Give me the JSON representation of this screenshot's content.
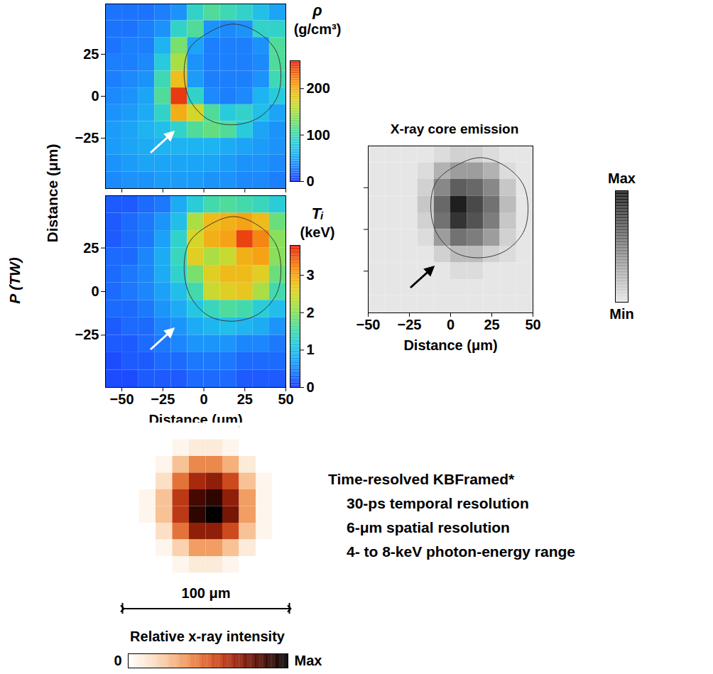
{
  "chart_data": [
    {
      "type": "heatmap",
      "ylabel": "Distance (μm)",
      "xlim": [
        -60,
        50
      ],
      "ylim": [
        -55,
        55
      ],
      "xticks": [
        -50,
        -25,
        0,
        25,
        50
      ],
      "yticks": [
        -25,
        0,
        25
      ],
      "tick_labels": "y",
      "x": [
        -55,
        -45,
        -35,
        -25,
        -15,
        -5,
        5,
        15,
        25,
        35,
        45
      ],
      "y": [
        50,
        40,
        30,
        20,
        10,
        0,
        -10,
        -20,
        -30,
        -40,
        -50
      ],
      "values": [
        [
          25,
          25,
          25,
          30,
          40,
          90,
          110,
          100,
          90,
          70,
          50
        ],
        [
          25,
          25,
          30,
          40,
          90,
          110,
          40,
          35,
          40,
          90,
          90
        ],
        [
          25,
          30,
          30,
          60,
          130,
          50,
          30,
          30,
          30,
          40,
          110
        ],
        [
          30,
          30,
          35,
          80,
          150,
          40,
          30,
          30,
          30,
          35,
          110
        ],
        [
          30,
          35,
          40,
          100,
          190,
          45,
          30,
          30,
          30,
          40,
          100
        ],
        [
          35,
          40,
          50,
          110,
          250,
          90,
          35,
          30,
          35,
          60,
          80
        ],
        [
          40,
          45,
          55,
          90,
          200,
          170,
          110,
          80,
          90,
          70,
          50
        ],
        [
          45,
          50,
          60,
          70,
          90,
          110,
          120,
          110,
          80,
          50,
          40
        ],
        [
          45,
          50,
          55,
          60,
          60,
          60,
          60,
          55,
          50,
          45,
          40
        ],
        [
          40,
          45,
          50,
          50,
          50,
          50,
          50,
          45,
          40,
          40,
          35
        ],
        [
          35,
          40,
          40,
          45,
          45,
          45,
          40,
          40,
          35,
          35,
          30
        ]
      ],
      "contour": {
        "x": [
          47,
          44,
          33,
          18,
          3,
          -9,
          -12,
          -8,
          3,
          18,
          33,
          44
        ],
        "y": [
          12,
          27,
          38,
          43,
          38,
          28,
          12,
          -3,
          -14,
          -17,
          -13,
          -2
        ]
      },
      "colorbar": {
        "label": [
          "ρ",
          "(g/cm³)"
        ],
        "range": [
          0,
          260
        ],
        "ticks": [
          0,
          100,
          200
        ]
      }
    },
    {
      "type": "heatmap",
      "xlabel": "Distance (μm)",
      "xlim": [
        -60,
        50
      ],
      "ylim": [
        -55,
        55
      ],
      "xticks": [
        -50,
        -25,
        0,
        25,
        50
      ],
      "yticks": [
        -25,
        0,
        25
      ],
      "tick_labels": true,
      "x": [
        -55,
        -45,
        -35,
        -25,
        -15,
        -5,
        5,
        15,
        25,
        35,
        45
      ],
      "y": [
        50,
        40,
        30,
        20,
        10,
        0,
        -10,
        -20,
        -30,
        -40,
        -50
      ],
      "values": [
        [
          0.2,
          0.2,
          0.3,
          0.4,
          0.8,
          1.2,
          1.5,
          1.6,
          1.5,
          1.4,
          1.2
        ],
        [
          0.2,
          0.3,
          0.4,
          0.6,
          1.0,
          2.2,
          2.8,
          2.9,
          3.0,
          2.8,
          1.8
        ],
        [
          0.2,
          0.3,
          0.4,
          0.7,
          1.3,
          2.5,
          2.9,
          3.0,
          3.6,
          3.2,
          2.0
        ],
        [
          0.3,
          0.3,
          0.5,
          0.8,
          1.4,
          2.6,
          2.2,
          2.4,
          2.9,
          3.0,
          2.0
        ],
        [
          0.3,
          0.4,
          0.5,
          0.8,
          1.3,
          1.9,
          2.6,
          2.8,
          2.8,
          2.6,
          1.8
        ],
        [
          0.3,
          0.4,
          0.5,
          0.7,
          1.0,
          1.5,
          2.4,
          2.6,
          2.7,
          2.2,
          1.5
        ],
        [
          0.3,
          0.3,
          0.4,
          0.6,
          0.8,
          1.1,
          1.4,
          1.6,
          1.5,
          1.2,
          1.0
        ],
        [
          0.2,
          0.3,
          0.3,
          0.5,
          0.6,
          0.8,
          0.9,
          1.0,
          0.9,
          0.8,
          0.6
        ],
        [
          0.2,
          0.2,
          0.3,
          0.4,
          0.5,
          0.6,
          0.6,
          0.6,
          0.5,
          0.5,
          0.4
        ],
        [
          0.1,
          0.2,
          0.2,
          0.3,
          0.3,
          0.4,
          0.4,
          0.4,
          0.3,
          0.3,
          0.3
        ],
        [
          0.1,
          0.1,
          0.2,
          0.2,
          0.2,
          0.3,
          0.3,
          0.3,
          0.2,
          0.2,
          0.2
        ]
      ],
      "contour": {
        "x": [
          47,
          44,
          33,
          18,
          3,
          -9,
          -12,
          -8,
          3,
          18,
          33,
          44
        ],
        "y": [
          12,
          27,
          38,
          43,
          38,
          28,
          12,
          -3,
          -14,
          -17,
          -13,
          -2
        ]
      },
      "colorbar": {
        "label": [
          "Tᵢ",
          "(keV)"
        ],
        "range": [
          0,
          3.8
        ],
        "ticks": [
          0,
          1,
          2,
          3
        ]
      }
    },
    {
      "type": "heatmap",
      "title": "X-ray core emission",
      "xlabel": "Distance (μm)",
      "xlim": [
        -50,
        50
      ],
      "ylim": [
        -50,
        50
      ],
      "xticks": [
        -50,
        -25,
        0,
        25,
        50
      ],
      "yticks": [
        -25,
        0,
        25
      ],
      "tick_labels": "x",
      "x": [
        -45,
        -35,
        -25,
        -15,
        -5,
        5,
        15,
        25,
        35,
        45
      ],
      "y": [
        45,
        35,
        25,
        15,
        5,
        -5,
        -15,
        -25,
        -35,
        -45
      ],
      "values": [
        [
          0,
          0,
          0,
          0,
          0.05,
          0.1,
          0.1,
          0.05,
          0,
          0
        ],
        [
          0,
          0,
          0,
          0.05,
          0.25,
          0.35,
          0.35,
          0.25,
          0.05,
          0
        ],
        [
          0,
          0,
          0,
          0.1,
          0.45,
          0.65,
          0.6,
          0.45,
          0.15,
          0
        ],
        [
          0,
          0,
          0,
          0.15,
          0.6,
          0.95,
          0.75,
          0.55,
          0.2,
          0
        ],
        [
          0,
          0,
          0,
          0.1,
          0.55,
          0.85,
          0.7,
          0.5,
          0.15,
          0
        ],
        [
          0,
          0,
          0,
          0.05,
          0.35,
          0.55,
          0.5,
          0.35,
          0.1,
          0
        ],
        [
          0,
          0,
          0,
          0,
          0.1,
          0.2,
          0.2,
          0.1,
          0.05,
          0
        ],
        [
          0,
          0,
          0,
          0,
          0,
          0.05,
          0.05,
          0,
          0,
          0
        ],
        [
          0,
          0,
          0,
          0,
          0,
          0,
          0,
          0,
          0,
          0
        ],
        [
          0,
          0,
          0,
          0,
          0,
          0,
          0,
          0,
          0,
          0
        ]
      ],
      "contour": {
        "x": [
          47,
          44,
          33,
          18,
          3,
          -9,
          -12,
          -8,
          3,
          18,
          33,
          44
        ],
        "y": [
          12,
          27,
          38,
          43,
          38,
          28,
          12,
          -3,
          -14,
          -17,
          -13,
          -2
        ]
      },
      "colorbar": {
        "range": [
          0,
          1
        ],
        "ticks": [
          {
            "value": 0,
            "label": "Min"
          },
          {
            "value": 1,
            "label": "Max"
          }
        ]
      }
    },
    {
      "type": "heatmap",
      "xlim": [
        -50,
        50
      ],
      "ylim": [
        -50,
        50
      ],
      "tick_labels": false,
      "x": [
        -45,
        -35,
        -25,
        -15,
        -5,
        5,
        15,
        25,
        35,
        45
      ],
      "y": [
        45,
        35,
        25,
        15,
        5,
        -5,
        -15,
        -25,
        -35,
        -45
      ],
      "values": [
        [
          0,
          0,
          0,
          0,
          0,
          0,
          0,
          0,
          0,
          0
        ],
        [
          0,
          0,
          0,
          0.05,
          0.1,
          0.1,
          0.05,
          0,
          0,
          0
        ],
        [
          0,
          0,
          0.05,
          0.25,
          0.4,
          0.4,
          0.3,
          0.1,
          0,
          0
        ],
        [
          0,
          0,
          0.15,
          0.45,
          0.65,
          0.7,
          0.55,
          0.25,
          0.05,
          0
        ],
        [
          0,
          0.05,
          0.25,
          0.6,
          0.85,
          0.9,
          0.7,
          0.35,
          0.05,
          0
        ],
        [
          0,
          0.05,
          0.25,
          0.6,
          0.9,
          1.0,
          0.75,
          0.35,
          0.05,
          0
        ],
        [
          0,
          0,
          0.15,
          0.45,
          0.7,
          0.7,
          0.55,
          0.25,
          0.05,
          0
        ],
        [
          0,
          0,
          0.05,
          0.2,
          0.35,
          0.35,
          0.25,
          0.1,
          0,
          0
        ],
        [
          0,
          0,
          0,
          0.05,
          0.1,
          0.1,
          0.05,
          0,
          0,
          0
        ],
        [
          0,
          0,
          0,
          0,
          0,
          0,
          0,
          0,
          0,
          0
        ]
      ],
      "scale_bar": {
        "value": 100,
        "label": "100 μm"
      },
      "colorbar": {
        "label": "Relative x-ray intensity",
        "range": [
          0,
          1
        ],
        "ticks": [
          0,
          {
            "value": 1,
            "label": "Max"
          }
        ]
      },
      "annotations": [
        "Time-resolved KBFramed*",
        "30-ps temporal resolution",
        "6-μm spatial resolution",
        "4- to 8-keV photon-energy range"
      ]
    }
  ],
  "side_label": "P (TW)"
}
